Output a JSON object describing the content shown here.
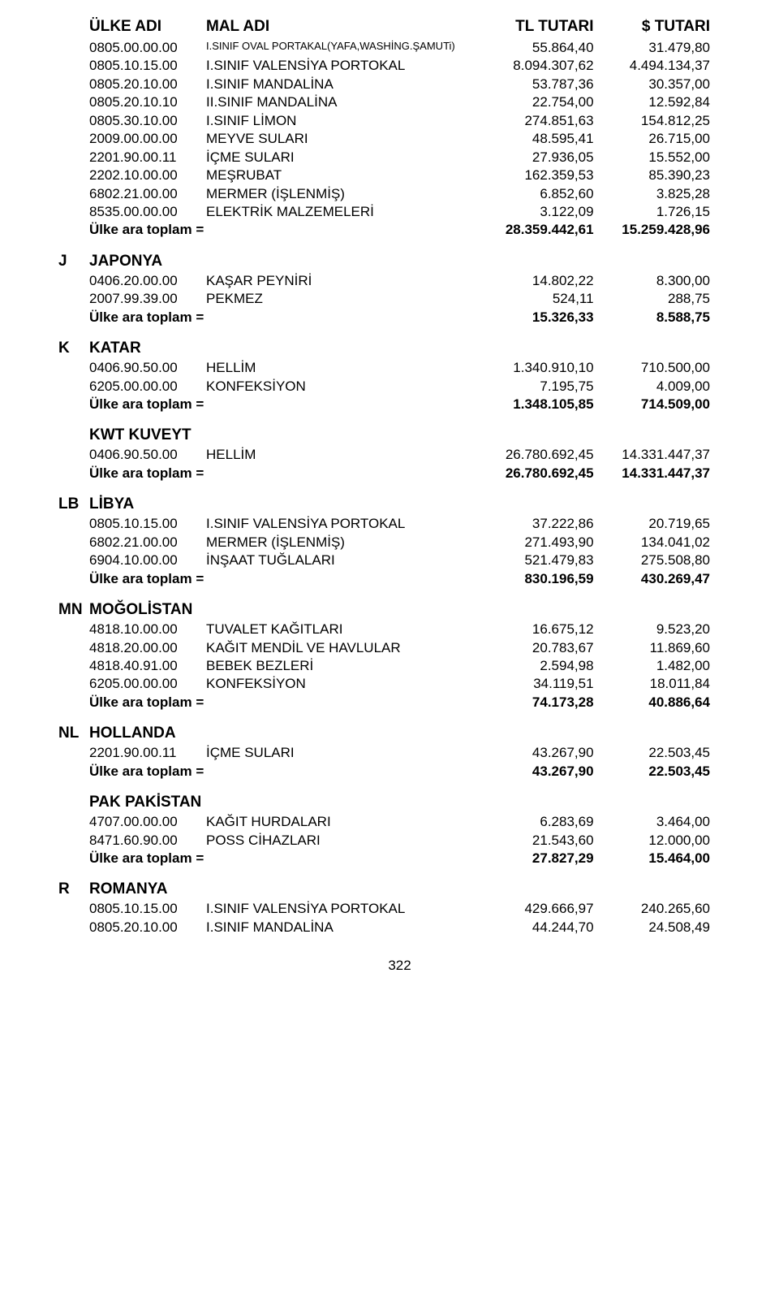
{
  "header": {
    "ulke": "ÜLKE ADI",
    "mal": "MAL ADI",
    "tl": "TL TUTARI",
    "usd": "$ TUTARI"
  },
  "subtotal_label": "Ülke ara toplam =",
  "page_number": "322",
  "initial_rows": [
    {
      "code": "0805.00.00.00",
      "desc": "I.SINIF OVAL PORTAKAL(YAFA,WASHİNG.ŞAMUTi)",
      "tl": "55.864,40",
      "usd": "31.479,80",
      "small": true
    },
    {
      "code": "0805.10.15.00",
      "desc": "I.SINIF VALENSİYA PORTOKAL",
      "tl": "8.094.307,62",
      "usd": "4.494.134,37"
    },
    {
      "code": "0805.20.10.00",
      "desc": "I.SINIF MANDALİNA",
      "tl": "53.787,36",
      "usd": "30.357,00"
    },
    {
      "code": "0805.20.10.10",
      "desc": "II.SINIF MANDALİNA",
      "tl": "22.754,00",
      "usd": "12.592,84"
    },
    {
      "code": "0805.30.10.00",
      "desc": "I.SINIF LİMON",
      "tl": "274.851,63",
      "usd": "154.812,25"
    },
    {
      "code": "2009.00.00.00",
      "desc": "MEYVE SULARI",
      "tl": "48.595,41",
      "usd": "26.715,00"
    },
    {
      "code": "2201.90.00.11",
      "desc": "İÇME SULARI",
      "tl": "27.936,05",
      "usd": "15.552,00"
    },
    {
      "code": "2202.10.00.00",
      "desc": "MEŞRUBAT",
      "tl": "162.359,53",
      "usd": "85.390,23"
    },
    {
      "code": "6802.21.00.00",
      "desc": "MERMER (İŞLENMİŞ)",
      "tl": "6.852,60",
      "usd": "3.825,28"
    },
    {
      "code": "8535.00.00.00",
      "desc": "ELEKTRİK MALZEMELERİ",
      "tl": "3.122,09",
      "usd": "1.726,15"
    }
  ],
  "initial_subtotal": {
    "tl": "28.359.442,61",
    "usd": "15.259.428,96"
  },
  "sections": [
    {
      "letter": "J",
      "title": "JAPONYA",
      "rows": [
        {
          "code": "0406.20.00.00",
          "desc": "KAŞAR PEYNİRİ",
          "tl": "14.802,22",
          "usd": "8.300,00"
        },
        {
          "code": "2007.99.39.00",
          "desc": "PEKMEZ",
          "tl": "524,11",
          "usd": "288,75"
        }
      ],
      "subtotal": {
        "tl": "15.326,33",
        "usd": "8.588,75"
      }
    },
    {
      "letter": "K",
      "title": "KATAR",
      "rows": [
        {
          "code": "0406.90.50.00",
          "desc": "HELLİM",
          "tl": "1.340.910,10",
          "usd": "710.500,00"
        },
        {
          "code": "6205.00.00.00",
          "desc": "KONFEKSİYON",
          "tl": "7.195,75",
          "usd": "4.009,00"
        }
      ],
      "subtotal": {
        "tl": "1.348.105,85",
        "usd": "714.509,00"
      }
    },
    {
      "letter": "KWT",
      "title": "KUVEYT",
      "no_gap": true,
      "rows": [
        {
          "code": "0406.90.50.00",
          "desc": "HELLİM",
          "tl": "26.780.692,45",
          "usd": "14.331.447,37"
        }
      ],
      "subtotal": {
        "tl": "26.780.692,45",
        "usd": "14.331.447,37"
      }
    },
    {
      "letter": "LB",
      "title": "LİBYA",
      "rows": [
        {
          "code": "0805.10.15.00",
          "desc": "I.SINIF VALENSİYA PORTOKAL",
          "tl": "37.222,86",
          "usd": "20.719,65"
        },
        {
          "code": "6802.21.00.00",
          "desc": "MERMER (İŞLENMİŞ)",
          "tl": "271.493,90",
          "usd": "134.041,02"
        },
        {
          "code": "6904.10.00.00",
          "desc": "İNŞAAT TUĞLALARI",
          "tl": "521.479,83",
          "usd": "275.508,80"
        }
      ],
      "subtotal": {
        "tl": "830.196,59",
        "usd": "430.269,47"
      }
    },
    {
      "letter": "MN",
      "title": "MOĞOLİSTAN",
      "rows": [
        {
          "code": "4818.10.00.00",
          "desc": "TUVALET KAĞITLARI",
          "tl": "16.675,12",
          "usd": "9.523,20"
        },
        {
          "code": "4818.20.00.00",
          "desc": "KAĞIT MENDİL VE HAVLULAR",
          "tl": "20.783,67",
          "usd": "11.869,60"
        },
        {
          "code": "4818.40.91.00",
          "desc": "BEBEK BEZLERİ",
          "tl": "2.594,98",
          "usd": "1.482,00"
        },
        {
          "code": "6205.00.00.00",
          "desc": "KONFEKSİYON",
          "tl": "34.119,51",
          "usd": "18.011,84"
        }
      ],
      "subtotal": {
        "tl": "74.173,28",
        "usd": "40.886,64"
      }
    },
    {
      "letter": "NL",
      "title": "HOLLANDA",
      "rows": [
        {
          "code": "2201.90.00.11",
          "desc": "İÇME SULARI",
          "tl": "43.267,90",
          "usd": "22.503,45"
        }
      ],
      "subtotal": {
        "tl": "43.267,90",
        "usd": "22.503,45"
      }
    },
    {
      "letter": "PAK",
      "title": "PAKİSTAN",
      "no_gap": true,
      "rows": [
        {
          "code": "4707.00.00.00",
          "desc": "KAĞIT HURDALARI",
          "tl": "6.283,69",
          "usd": "3.464,00"
        },
        {
          "code": "8471.60.90.00",
          "desc": "POSS CİHAZLARI",
          "tl": "21.543,60",
          "usd": "12.000,00"
        }
      ],
      "subtotal": {
        "tl": "27.827,29",
        "usd": "15.464,00"
      }
    },
    {
      "letter": "R",
      "title": "ROMANYA",
      "rows": [
        {
          "code": "0805.10.15.00",
          "desc": "I.SINIF VALENSİYA PORTOKAL",
          "tl": "429.666,97",
          "usd": "240.265,60"
        },
        {
          "code": "0805.20.10.00",
          "desc": "I.SINIF MANDALİNA",
          "tl": "44.244,70",
          "usd": "24.508,49"
        }
      ]
    }
  ]
}
